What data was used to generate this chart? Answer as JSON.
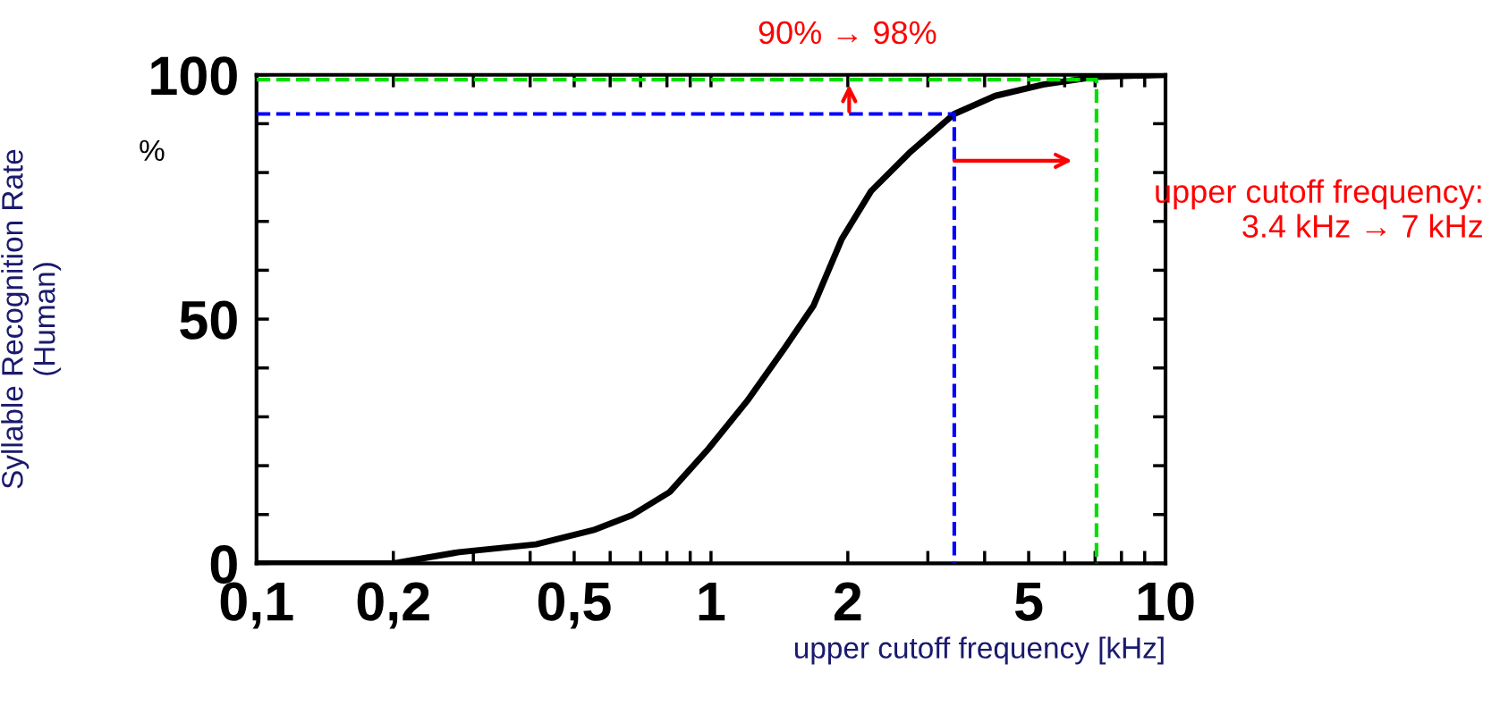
{
  "chart_data": {
    "type": "line",
    "xlabel": "upper cutoff frequency [kHz]",
    "ylabel": "Syllable Recognition Rate\n(Human)",
    "log": "x",
    "xlim": [
      0.1,
      10
    ],
    "ylim": [
      0,
      100
    ],
    "xticks": [
      {
        "value": 0.1,
        "label": "0,1"
      },
      {
        "value": 0.2,
        "label": "0,2"
      },
      {
        "value": 0.3,
        "label": null
      },
      {
        "value": 0.4,
        "label": null
      },
      {
        "value": 0.5,
        "label": "0,5"
      },
      {
        "value": 0.6,
        "label": null
      },
      {
        "value": 0.7,
        "label": null
      },
      {
        "value": 0.8,
        "label": null
      },
      {
        "value": 0.9,
        "label": null
      },
      1,
      2,
      {
        "value": 3,
        "label": null
      },
      {
        "value": 4,
        "label": null
      },
      5,
      {
        "value": 6,
        "label": null
      },
      {
        "value": 7,
        "label": null
      },
      {
        "value": 8,
        "label": null
      },
      {
        "value": 9,
        "label": null
      },
      10
    ],
    "yticks": [
      0,
      {
        "value": 10,
        "label": null
      },
      {
        "value": 20,
        "label": null
      },
      {
        "value": 30,
        "label": null
      },
      {
        "value": 40,
        "label": null
      },
      50,
      {
        "value": 60,
        "label": null
      },
      {
        "value": 70,
        "label": null
      },
      {
        "value": 80,
        "label": null
      },
      {
        "value": 90,
        "label": null
      },
      100
    ],
    "grid": false,
    "legend": false,
    "marker": "none",
    "series": [
      {
        "color": "#000000",
        "line_style": "solid",
        "x": [
          0.1,
          0.149,
          0.2,
          0.279,
          0.412,
          0.551,
          0.668,
          0.811,
          0.986,
          1.2,
          1.45,
          1.68,
          1.94,
          2.25,
          2.73,
          3.43,
          4.22,
          5.38,
          7.05,
          10
        ],
        "values": [
          0,
          0,
          0,
          2.3,
          3.9,
          6.8,
          9.8,
          14.6,
          23.4,
          33.2,
          44,
          52.7,
          66.4,
          76.2,
          84,
          92,
          95.7,
          98,
          99.6,
          100
        ]
      },
      {
        "color": "#0000ff",
        "line_style": "dashed",
        "x": [
          0.1,
          3.43,
          3.43
        ],
        "values": [
          92,
          92,
          0
        ]
      },
      {
        "color": "#00dd00",
        "line_style": "dashed",
        "x": [
          0.1,
          7.05,
          7.05
        ],
        "values": [
          99,
          99,
          0
        ]
      }
    ],
    "annotations": [
      "90% → 98%",
      "upper cutoff frequency:\n3.4 kHz → 7 kHz",
      "%"
    ]
  }
}
